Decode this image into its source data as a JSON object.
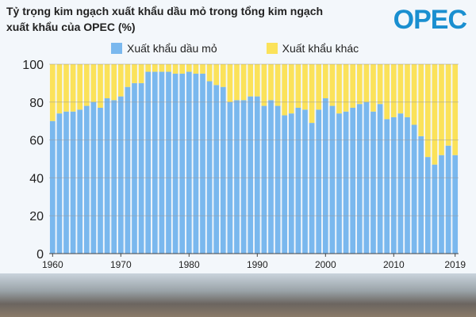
{
  "title": "Tỷ trọng kim ngạch xuất khẩu dầu mỏ trong tổng kim ngạch xuất khẩu của OPEC (%)",
  "logo": "OPEC",
  "colors": {
    "oil": "#7ab8ee",
    "other": "#fbe25a"
  },
  "chart_data": {
    "type": "bar",
    "stacked": true,
    "title": "Tỷ trọng kim ngạch xuất khẩu dầu mỏ trong tổng kim ngạch xuất khẩu của OPEC (%)",
    "x": [
      1960,
      1961,
      1962,
      1963,
      1964,
      1965,
      1966,
      1967,
      1968,
      1969,
      1970,
      1971,
      1972,
      1973,
      1974,
      1975,
      1976,
      1977,
      1978,
      1979,
      1980,
      1981,
      1982,
      1983,
      1984,
      1985,
      1986,
      1987,
      1988,
      1989,
      1990,
      1991,
      1992,
      1993,
      1994,
      1995,
      1996,
      1997,
      1998,
      1999,
      2000,
      2001,
      2002,
      2003,
      2004,
      2005,
      2006,
      2007,
      2008,
      2009,
      2010,
      2011,
      2012,
      2013,
      2014,
      2015,
      2016,
      2017,
      2018,
      2019
    ],
    "series": [
      {
        "name": "Xuất khẩu dầu mỏ",
        "values": [
          70,
          74,
          75,
          75,
          76,
          78,
          80,
          77,
          82,
          81,
          83,
          88,
          90,
          90,
          96,
          96,
          96,
          96,
          95,
          95,
          96,
          95,
          95,
          91,
          89,
          88,
          80,
          81,
          81,
          83,
          83,
          78,
          81,
          78,
          73,
          74,
          77,
          76,
          69,
          76,
          82,
          78,
          74,
          75,
          77,
          79,
          80,
          75,
          79,
          71,
          72,
          74,
          72,
          68,
          62,
          51,
          47,
          52,
          57,
          52
        ]
      },
      {
        "name": "Xuất khẩu khác",
        "values": [
          30,
          26,
          25,
          25,
          24,
          22,
          20,
          23,
          18,
          19,
          17,
          12,
          10,
          10,
          4,
          4,
          4,
          4,
          5,
          5,
          4,
          5,
          5,
          9,
          11,
          12,
          20,
          19,
          19,
          17,
          17,
          22,
          19,
          22,
          27,
          26,
          23,
          24,
          31,
          24,
          18,
          22,
          26,
          25,
          23,
          21,
          20,
          25,
          21,
          29,
          28,
          26,
          28,
          32,
          38,
          49,
          53,
          48,
          43,
          48
        ]
      }
    ],
    "xticks": [
      "1960",
      "1970",
      "1980",
      "1990",
      "2000",
      "2010",
      "2019"
    ],
    "yticks": [
      "0",
      "20",
      "40",
      "60",
      "80",
      "100"
    ],
    "ylim": [
      0,
      100
    ],
    "grid": true,
    "legend": "top"
  }
}
